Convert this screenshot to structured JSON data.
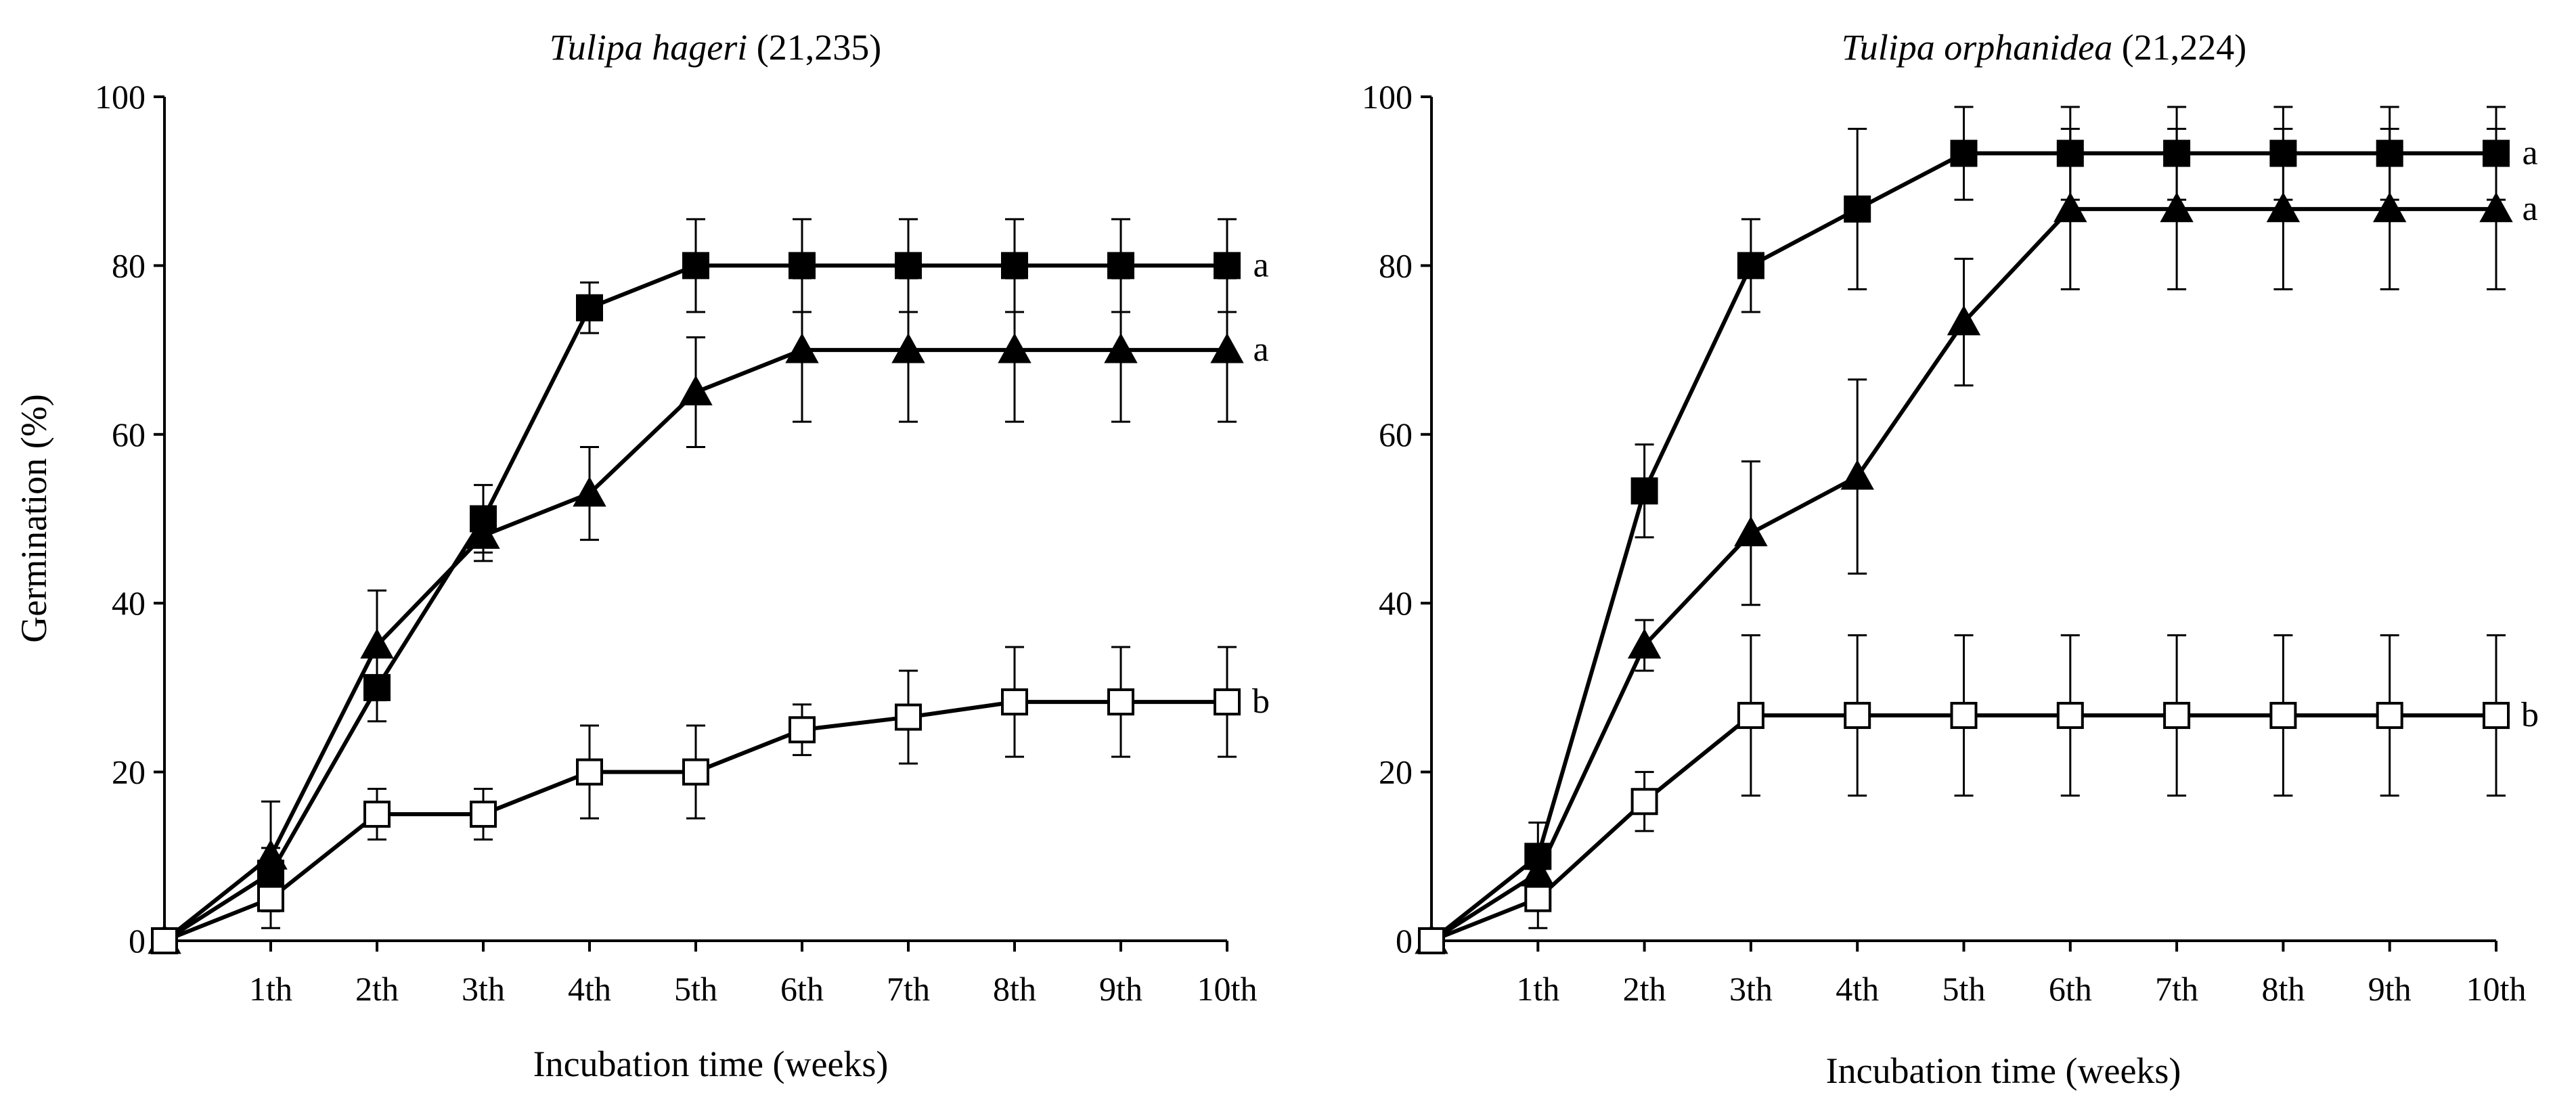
{
  "chart_data": [
    {
      "type": "line",
      "title_species": "Tulipa hageri",
      "title_suffix": " (21,235)",
      "xlabel": "Incubation time (weeks)",
      "ylabel": "Germination (%)",
      "ylim": [
        0,
        100
      ],
      "yticks": [
        "0",
        "20",
        "40",
        "60",
        "80",
        "100"
      ],
      "categories": [
        "",
        "1th",
        "2th",
        "3th",
        "4th",
        "5th",
        "6th",
        "7th",
        "8th",
        "9th",
        "10th"
      ],
      "series": [
        {
          "name": "filled-square",
          "marker": "square-filled",
          "sig": "a",
          "values": [
            0,
            8,
            30,
            50,
            75,
            80,
            80,
            80,
            80,
            80,
            80
          ],
          "errors": [
            0,
            3,
            4,
            4,
            3,
            5.5,
            5.5,
            5.5,
            5.5,
            5.5,
            5.5
          ]
        },
        {
          "name": "filled-triangle",
          "marker": "triangle-filled",
          "sig": "a",
          "values": [
            0,
            10,
            35,
            48,
            53,
            65,
            70,
            70,
            70,
            70,
            70
          ],
          "errors": [
            0,
            6.5,
            6.5,
            3,
            5.5,
            6.5,
            8.5,
            8.5,
            8.5,
            8.5,
            8.5
          ]
        },
        {
          "name": "open-square",
          "marker": "square-open",
          "sig": "b",
          "values": [
            0,
            5,
            15,
            15,
            20,
            20,
            25,
            26.5,
            28.3,
            28.3,
            28.3
          ],
          "errors": [
            0,
            3.5,
            3,
            3,
            5.5,
            5.5,
            3,
            5.5,
            6.5,
            6.5,
            6.5
          ]
        }
      ]
    },
    {
      "type": "line",
      "title_species": "Tulipa orphanidea",
      "title_suffix": " (21,224)",
      "xlabel": "Incubation time (weeks)",
      "ylabel": "",
      "ylim": [
        0,
        100
      ],
      "yticks": [
        "0",
        "20",
        "40",
        "60",
        "80",
        "100"
      ],
      "categories": [
        "",
        "1th",
        "2th",
        "3th",
        "4th",
        "5th",
        "6th",
        "7th",
        "8th",
        "9th",
        "10th"
      ],
      "series": [
        {
          "name": "filled-square",
          "marker": "square-filled",
          "sig": "a",
          "values": [
            0,
            10,
            53.3,
            80,
            86.7,
            93.3,
            93.3,
            93.3,
            93.3,
            93.3,
            93.3
          ],
          "errors": [
            0,
            4,
            5.5,
            5.5,
            9.5,
            5.5,
            5.5,
            5.5,
            5.5,
            5.5,
            5.5
          ]
        },
        {
          "name": "filled-triangle",
          "marker": "triangle-filled",
          "sig": "a",
          "values": [
            0,
            8,
            35,
            48.3,
            55,
            73.3,
            86.7,
            86.7,
            86.7,
            86.7,
            86.7
          ],
          "errors": [
            0,
            3,
            3,
            8.5,
            11.5,
            7.5,
            9.5,
            9.5,
            9.5,
            9.5,
            9.5
          ]
        },
        {
          "name": "open-square",
          "marker": "square-open",
          "sig": "b",
          "values": [
            0,
            5,
            16.5,
            26.7,
            26.7,
            26.7,
            26.7,
            26.7,
            26.7,
            26.7,
            26.7
          ],
          "errors": [
            0,
            3.5,
            3.5,
            9.5,
            9.5,
            9.5,
            9.5,
            9.5,
            9.5,
            9.5,
            9.5
          ]
        }
      ]
    }
  ]
}
